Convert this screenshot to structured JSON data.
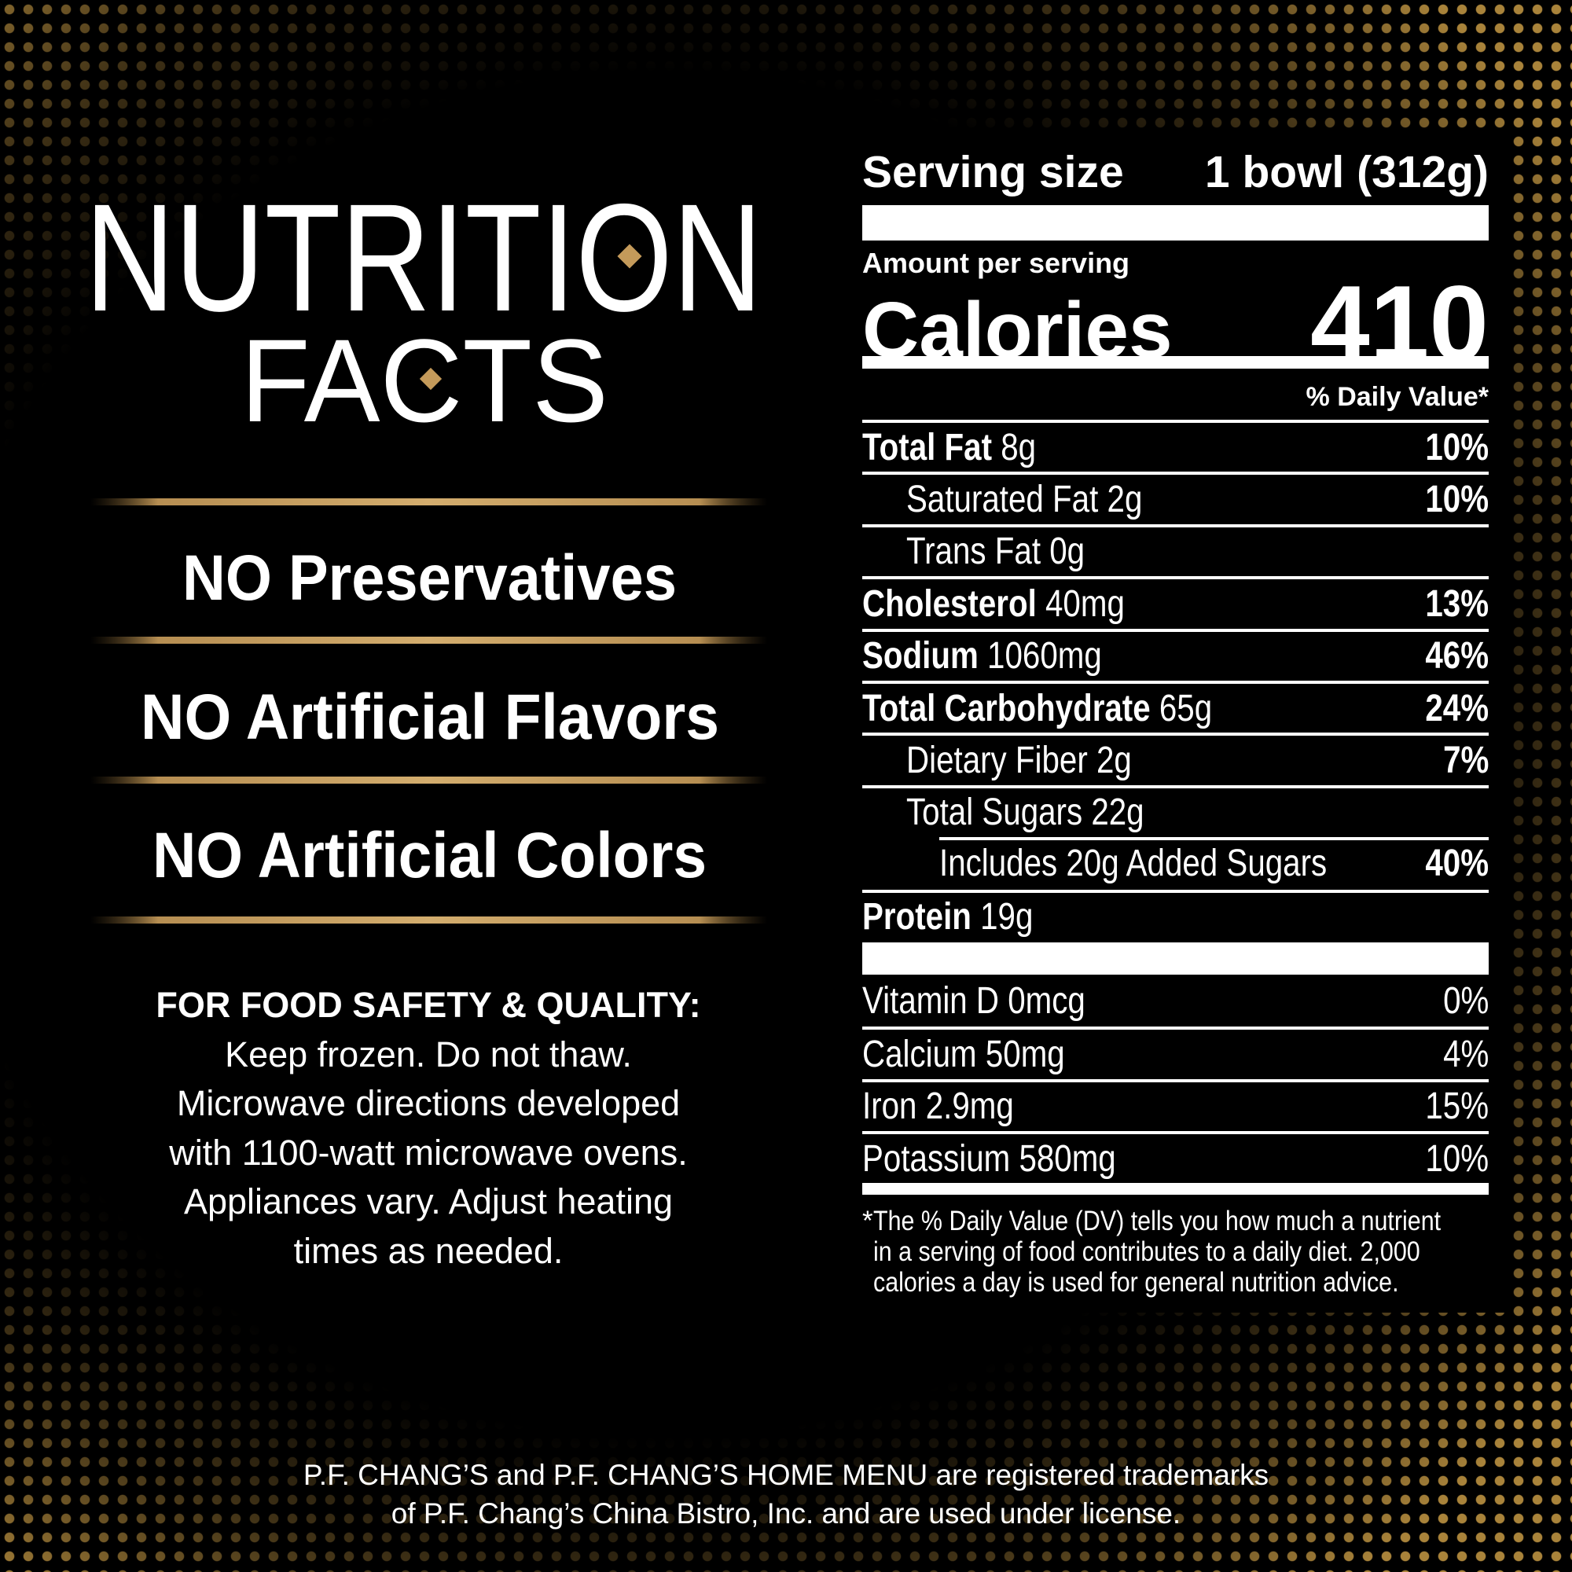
{
  "header": {
    "title_line1": "NUTRITION",
    "title_line2": "FACTS"
  },
  "claims": [
    "NO Preservatives",
    "NO Artificial Flavors",
    "NO Artificial Colors"
  ],
  "safety": {
    "heading": "FOR FOOD SAFETY & QUALITY:",
    "lines": [
      "Keep frozen. Do not thaw.",
      "Microwave directions developed",
      "with 1100-watt microwave ovens.",
      "Appliances vary. Adjust heating",
      "times as needed."
    ]
  },
  "label": {
    "serving_size_label": "Serving size",
    "serving_size": "1 bowl (312g)",
    "amount_per_serving": "Amount per serving",
    "calories_label": "Calories",
    "calories": "410",
    "daily_value_header": "% Daily Value*",
    "nutrients": [
      {
        "name": "Total Fat",
        "amount": "8g",
        "dv": "10%"
      },
      {
        "name": "Saturated Fat",
        "amount": "2g",
        "dv": "10%"
      },
      {
        "name": "Trans Fat",
        "amount": "0g"
      },
      {
        "name": "Cholesterol",
        "amount": "40mg",
        "dv": "13%"
      },
      {
        "name": "Sodium",
        "amount": "1060mg",
        "dv": "46%"
      },
      {
        "name": "Total Carbohydrate",
        "amount": "65g",
        "dv": "24%"
      },
      {
        "name": "Dietary Fiber",
        "amount": "2g",
        "dv": "7%"
      },
      {
        "name": "Total Sugars",
        "amount": "22g"
      },
      {
        "name": "Includes 20g Added Sugars",
        "dv": "40%"
      },
      {
        "name": "Protein",
        "amount": "19g"
      }
    ],
    "vitamins": [
      {
        "name": "Vitamin D",
        "amount": "0mcg",
        "dv": "0%"
      },
      {
        "name": "Calcium",
        "amount": "50mg",
        "dv": "4%"
      },
      {
        "name": "Iron",
        "amount": "2.9mg",
        "dv": "15%"
      },
      {
        "name": "Potassium",
        "amount": "580mg",
        "dv": "10%"
      }
    ],
    "footnote": {
      "mark": "*",
      "lines": [
        "The % Daily Value (DV) tells you how much a nutrient",
        "in a serving of food contributes to a daily diet. 2,000",
        "calories a day is used for general nutrition advice."
      ]
    }
  },
  "trademark": {
    "lines": [
      "P.F. CHANG’S and P.F. CHANG’S HOME MENU are registered trademarks",
      "of P.F. Chang’s China Bistro, Inc. and are used under license."
    ]
  }
}
